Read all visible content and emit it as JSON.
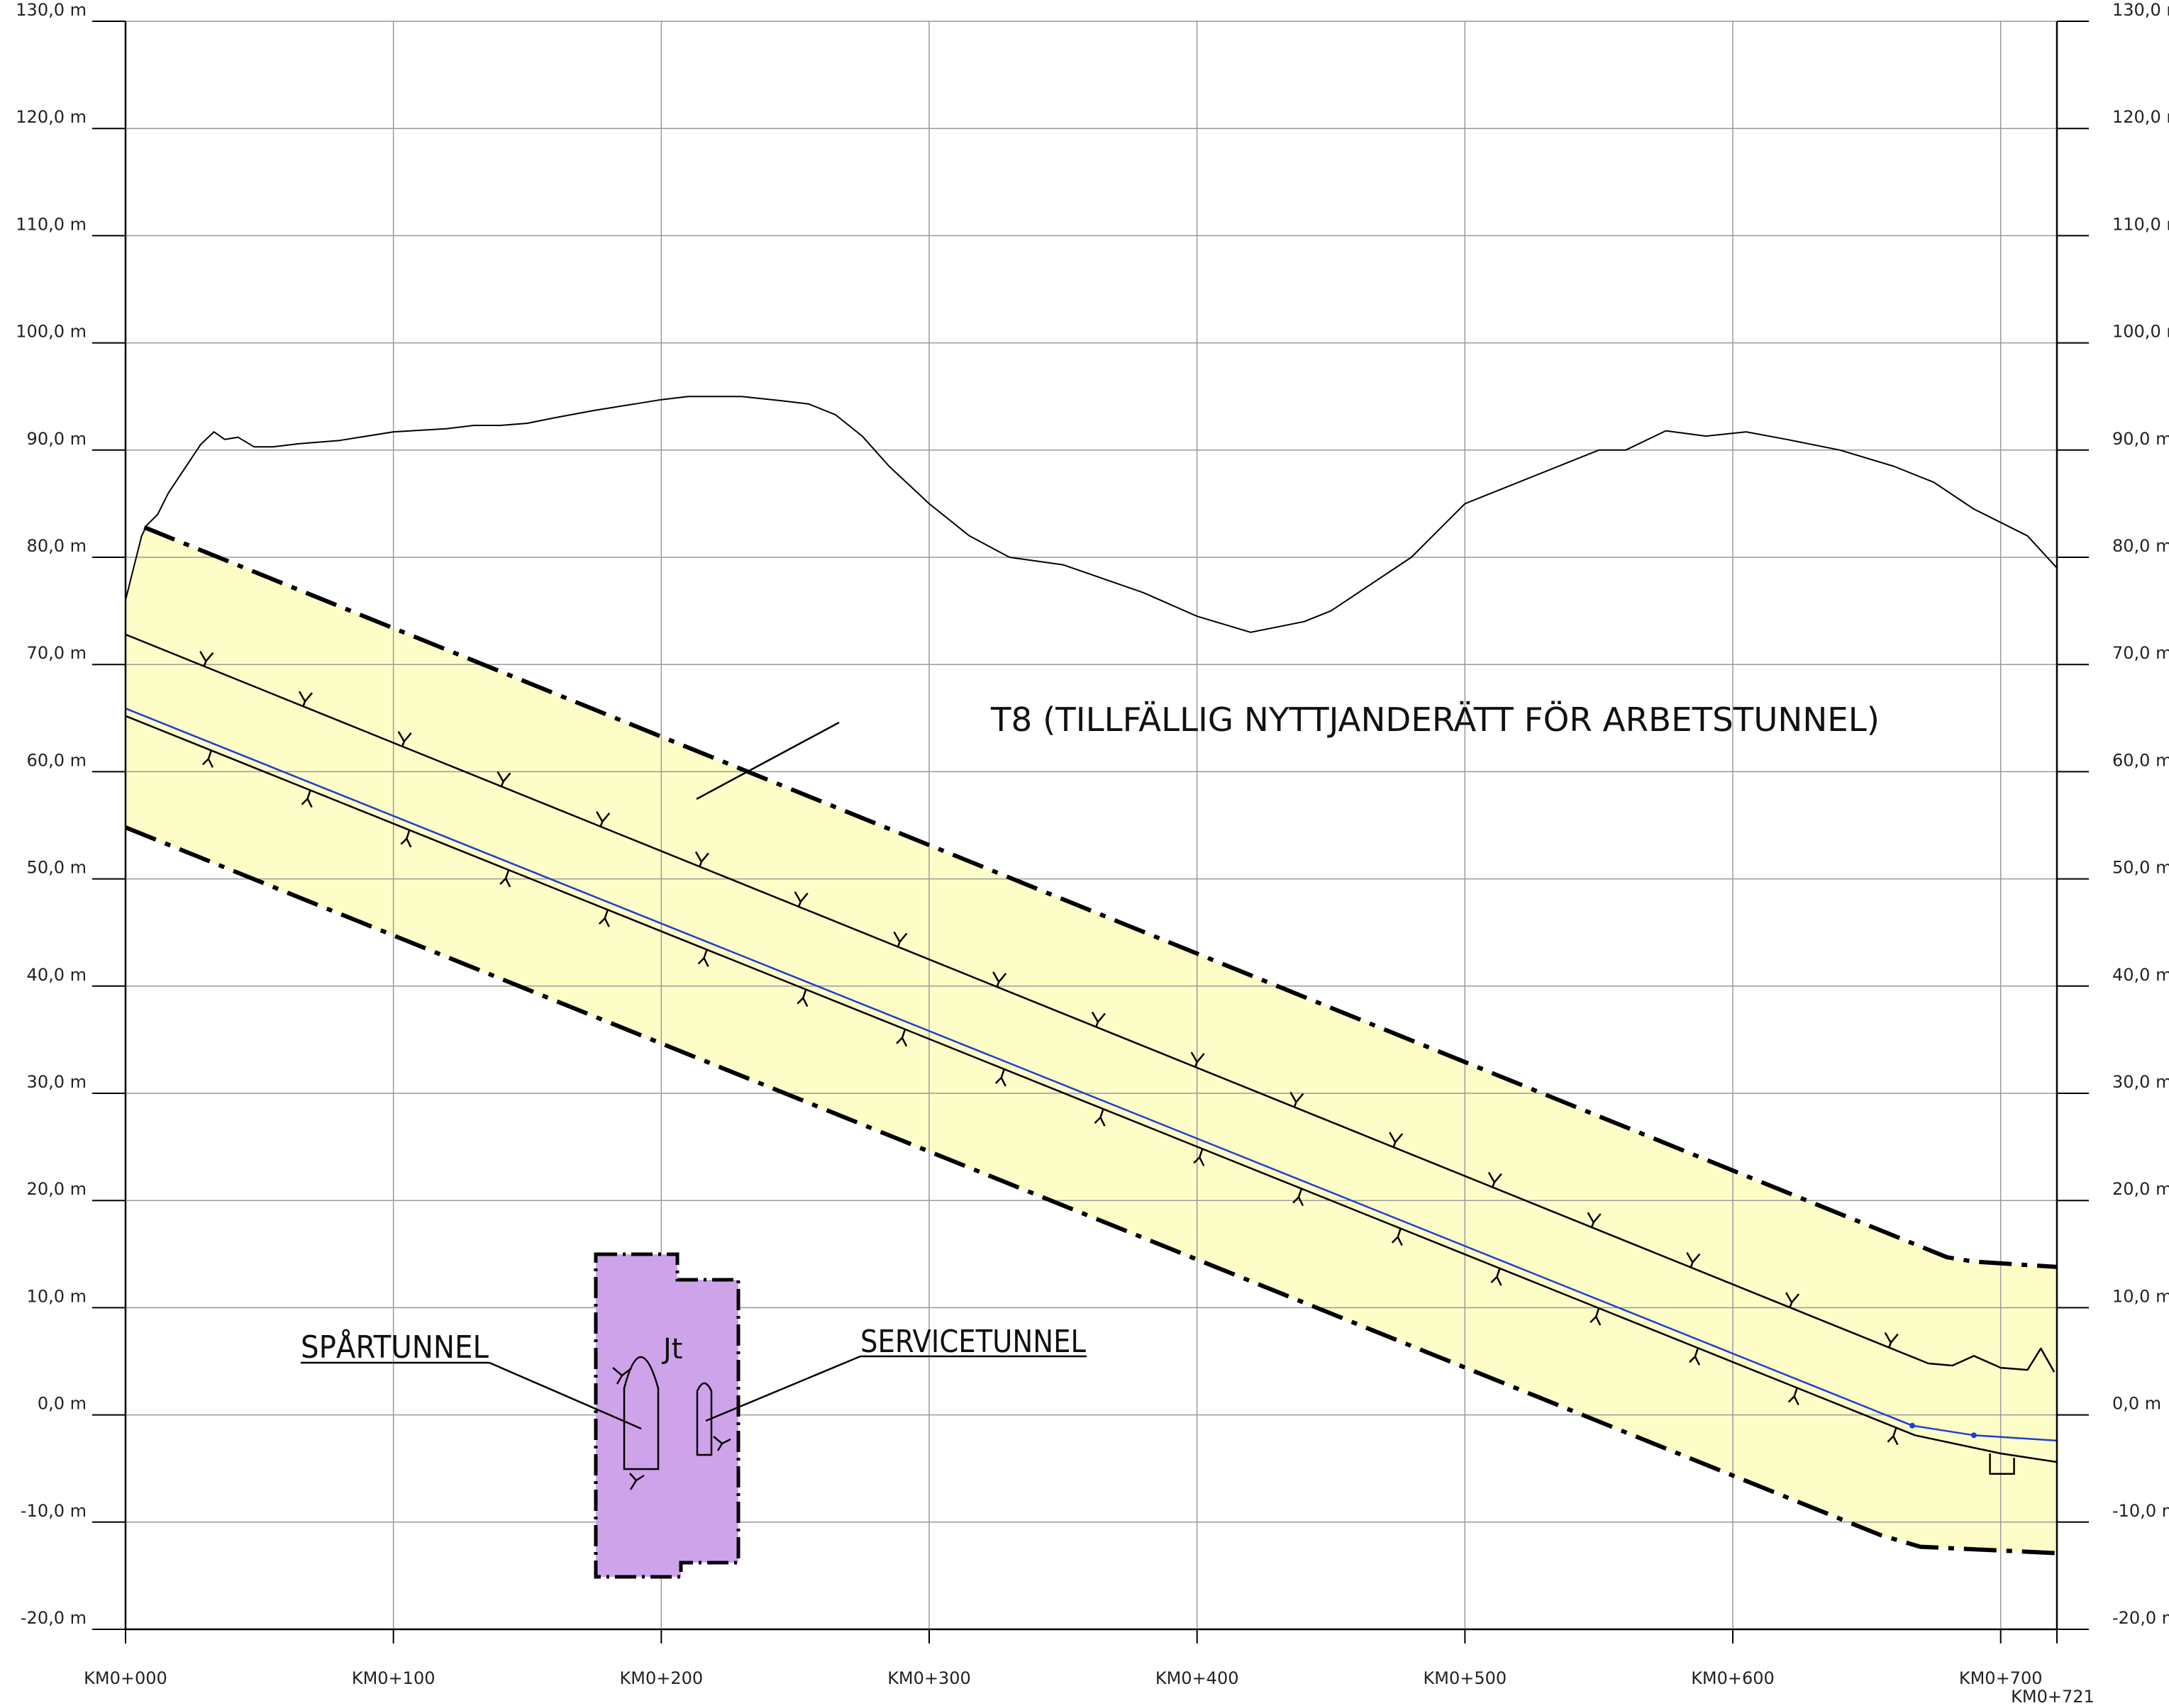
{
  "chart_data": {
    "type": "line",
    "title": "",
    "xlabel": "",
    "ylabel": "",
    "xlim": [
      0,
      721
    ],
    "ylim": [
      -20,
      130
    ],
    "grid": true,
    "y_ticks": [
      {
        "value": -20,
        "label": "-20,0 m"
      },
      {
        "value": -10,
        "label": "-10,0 m"
      },
      {
        "value": 0,
        "label": "0,0 m"
      },
      {
        "value": 10,
        "label": "10,0 m"
      },
      {
        "value": 20,
        "label": "20,0 m"
      },
      {
        "value": 30,
        "label": "30,0 m"
      },
      {
        "value": 40,
        "label": "40,0 m"
      },
      {
        "value": 50,
        "label": "50,0 m"
      },
      {
        "value": 60,
        "label": "60,0 m"
      },
      {
        "value": 70,
        "label": "70,0 m"
      },
      {
        "value": 80,
        "label": "80,0 m"
      },
      {
        "value": 90,
        "label": "90,0 m"
      },
      {
        "value": 100,
        "label": "100,0 m"
      },
      {
        "value": 110,
        "label": "110,0 m"
      },
      {
        "value": 120,
        "label": "120,0 m"
      },
      {
        "value": 130,
        "label": "130,0 m"
      }
    ],
    "x_ticks": [
      {
        "value": 0,
        "label": "KM0+000"
      },
      {
        "value": 100,
        "label": "KM0+100"
      },
      {
        "value": 200,
        "label": "KM0+200"
      },
      {
        "value": 300,
        "label": "KM0+300"
      },
      {
        "value": 400,
        "label": "KM0+400"
      },
      {
        "value": 500,
        "label": "KM0+500"
      },
      {
        "value": 600,
        "label": "KM0+600"
      },
      {
        "value": 700,
        "label": "KM0+700"
      }
    ],
    "end_label": {
      "value": 721,
      "label": "KM0+721"
    },
    "series": [
      {
        "key": "terrain",
        "color": "#000000",
        "points": [
          [
            0,
            76
          ],
          [
            3,
            79
          ],
          [
            6,
            82
          ],
          [
            8,
            83
          ],
          [
            12,
            84
          ],
          [
            16,
            86
          ],
          [
            20,
            87.5
          ],
          [
            24,
            89
          ],
          [
            28,
            90.5
          ],
          [
            33,
            91.7
          ],
          [
            37,
            91
          ],
          [
            42,
            91.2
          ],
          [
            48,
            90.3
          ],
          [
            55,
            90.3
          ],
          [
            65,
            90.6
          ],
          [
            80,
            90.9
          ],
          [
            100,
            91.7
          ],
          [
            120,
            92
          ],
          [
            130,
            92.3
          ],
          [
            140,
            92.3
          ],
          [
            150,
            92.5
          ],
          [
            160,
            93
          ],
          [
            175,
            93.7
          ],
          [
            190,
            94.3
          ],
          [
            200,
            94.7
          ],
          [
            210,
            95
          ],
          [
            230,
            95
          ],
          [
            245,
            94.6
          ],
          [
            255,
            94.3
          ],
          [
            265,
            93.3
          ],
          [
            275,
            91.3
          ],
          [
            285,
            88.5
          ],
          [
            300,
            85
          ],
          [
            315,
            82
          ],
          [
            330,
            80
          ],
          [
            350,
            79.3
          ],
          [
            380,
            76.7
          ],
          [
            400,
            74.5
          ],
          [
            420,
            73
          ],
          [
            440,
            74
          ],
          [
            450,
            75
          ],
          [
            480,
            80
          ],
          [
            500,
            85
          ],
          [
            520,
            87
          ],
          [
            550,
            90
          ],
          [
            560,
            90
          ],
          [
            575,
            91.8
          ],
          [
            590,
            91.3
          ],
          [
            605,
            91.7
          ],
          [
            620,
            91
          ],
          [
            640,
            90
          ],
          [
            660,
            88.5
          ],
          [
            675,
            87
          ],
          [
            690,
            84.5
          ],
          [
            710,
            82
          ],
          [
            721,
            79
          ]
        ]
      },
      {
        "key": "boundary_upper",
        "color": "#000000",
        "points": [
          [
            7,
            82.8
          ],
          [
            680,
            14.7
          ],
          [
            690,
            14.3
          ],
          [
            721,
            13.8
          ]
        ]
      },
      {
        "key": "boundary_lower",
        "color": "#000000",
        "points": [
          [
            0,
            54.8
          ],
          [
            655,
            -11.2
          ],
          [
            670,
            -12.3
          ],
          [
            721,
            -12.9
          ]
        ]
      },
      {
        "key": "tunnel_roof",
        "color": "#000000",
        "points": [
          [
            0,
            72.8
          ],
          [
            673,
            4.8
          ],
          [
            682,
            4.6
          ],
          [
            690,
            5.5
          ],
          [
            700,
            4.4
          ],
          [
            710,
            4.2
          ],
          [
            715,
            6.2
          ],
          [
            720,
            4
          ]
        ]
      },
      {
        "key": "tunnel_floor",
        "color": "#000000",
        "points": [
          [
            0,
            65.2
          ],
          [
            668,
            -1.9
          ],
          [
            700,
            -3.6
          ],
          [
            721,
            -4.4
          ]
        ]
      },
      {
        "key": "track_line",
        "color": "#1f3fcc",
        "points": [
          [
            0,
            65.9
          ],
          [
            667,
            -1
          ],
          [
            690,
            -1.9
          ],
          [
            721,
            -2.4
          ]
        ]
      }
    ],
    "area": {
      "key": "easement_zone",
      "color": "#fdfdc8",
      "upper": [
        [
          0,
          76
        ],
        [
          3,
          79
        ],
        [
          7,
          82.8
        ],
        [
          680,
          14.7
        ],
        [
          690,
          14.3
        ],
        [
          721,
          13.8
        ]
      ],
      "lower": [
        [
          0,
          54.8
        ],
        [
          655,
          -11.2
        ],
        [
          670,
          -12.3
        ],
        [
          721,
          -12.9
        ]
      ]
    }
  },
  "annotations": {
    "zone_label": "T8 (TILLFÄLLIG NYTTJANDERÄTT FÖR ARBETSTUNNEL)",
    "spar_label": "SPÅRTUNNEL",
    "service_label": "SERVICETUNNEL",
    "section_mark": "Jt"
  },
  "colors": {
    "zone_fill": "#fdfdc8",
    "section_fill": "#cfa3ea",
    "track_line": "#1f3fcc",
    "grid": "#9a9a9a"
  }
}
